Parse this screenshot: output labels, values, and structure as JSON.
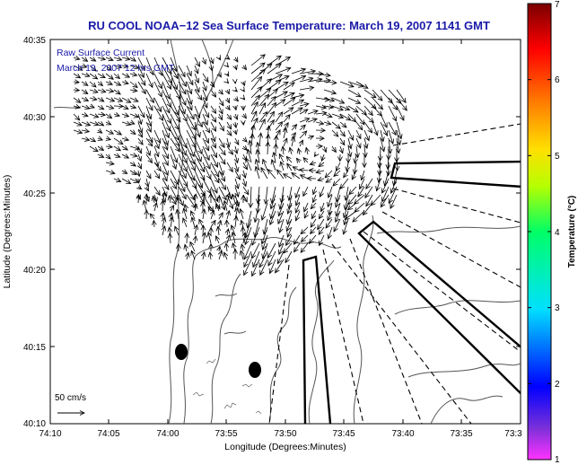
{
  "title": "RU COOL  NOAA−12  Sea Surface Temperature:  March 19, 2007 1141 GMT",
  "legend": {
    "line1": "Raw Surface Current",
    "line2": "March 19, 2007 12 hrs GMT"
  },
  "axes": {
    "xlabel": "Longitude (Degrees:Minutes)",
    "ylabel": "Latitude (Degrees:Minutes)",
    "x_ticks": [
      "74:10",
      "74:05",
      "74:00",
      "73:55",
      "73:50",
      "73:45",
      "73:40",
      "73:35",
      "73:3"
    ],
    "y_ticks": [
      "40:35",
      "40:30",
      "40:25",
      "40:20",
      "40:15",
      "40:10"
    ]
  },
  "scale_arrow_label": "50 cm/s",
  "colorbar": {
    "label": "Temperature (°C)",
    "ticks": [
      "7",
      "6",
      "5",
      "4",
      "3",
      "2",
      "1"
    ],
    "range": [
      1,
      7
    ]
  },
  "colors": {
    "title": "#1a1aa8",
    "land_outline": "#555555",
    "vectors": "#000000"
  }
}
